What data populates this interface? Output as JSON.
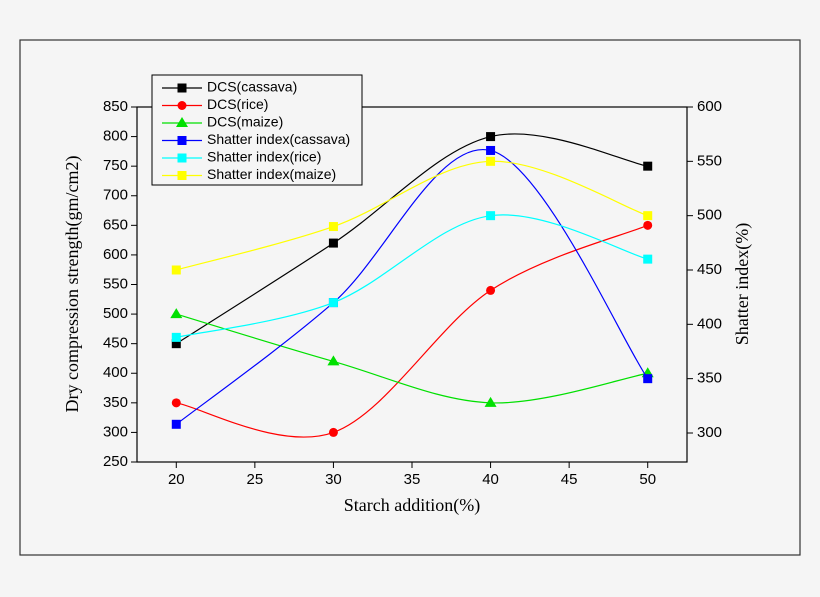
{
  "chart_data": {
    "type": "line",
    "x_label": "Starch addition(%)",
    "y_label": "Dry compression strength(gm/cm2)",
    "y2_label": "Shatter index(%)",
    "x": [
      20,
      30,
      40,
      50
    ],
    "xlim": [
      17.5,
      52.5
    ],
    "xticks": [
      20,
      25,
      30,
      35,
      40,
      45,
      50
    ],
    "ylim": [
      250,
      850
    ],
    "yticks": [
      250,
      300,
      350,
      400,
      450,
      500,
      550,
      600,
      650,
      700,
      750,
      800,
      850
    ],
    "y2lim": [
      273.3,
      600
    ],
    "y2ticks": [
      300,
      350,
      400,
      450,
      500,
      550,
      600
    ],
    "legend": "upper left",
    "series": [
      {
        "name": "DCS(cassava)",
        "color": "#000000",
        "marker": "square",
        "values": [
          450,
          620,
          800,
          750
        ]
      },
      {
        "name": "DCS(rice)",
        "color": "#ff0000",
        "marker": "circle",
        "values": [
          350,
          300,
          540,
          650
        ]
      },
      {
        "name": "DCS(maize)",
        "color": "#00e000",
        "marker": "triangle",
        "values": [
          500,
          420,
          350,
          400
        ]
      },
      {
        "name": "Shatter index(cassava)",
        "color": "#0000ff",
        "marker": "square",
        "axis": "y2",
        "values": [
          308,
          420,
          560,
          350
        ]
      },
      {
        "name": "Shatter index(rice)",
        "color": "#00ffff",
        "marker": "square",
        "axis": "y2",
        "values": [
          388,
          420,
          500,
          460
        ]
      },
      {
        "name": "Shatter index(maize)",
        "color": "#ffff00",
        "marker": "square",
        "axis": "y2",
        "values": [
          450,
          490,
          550,
          500
        ]
      }
    ]
  }
}
